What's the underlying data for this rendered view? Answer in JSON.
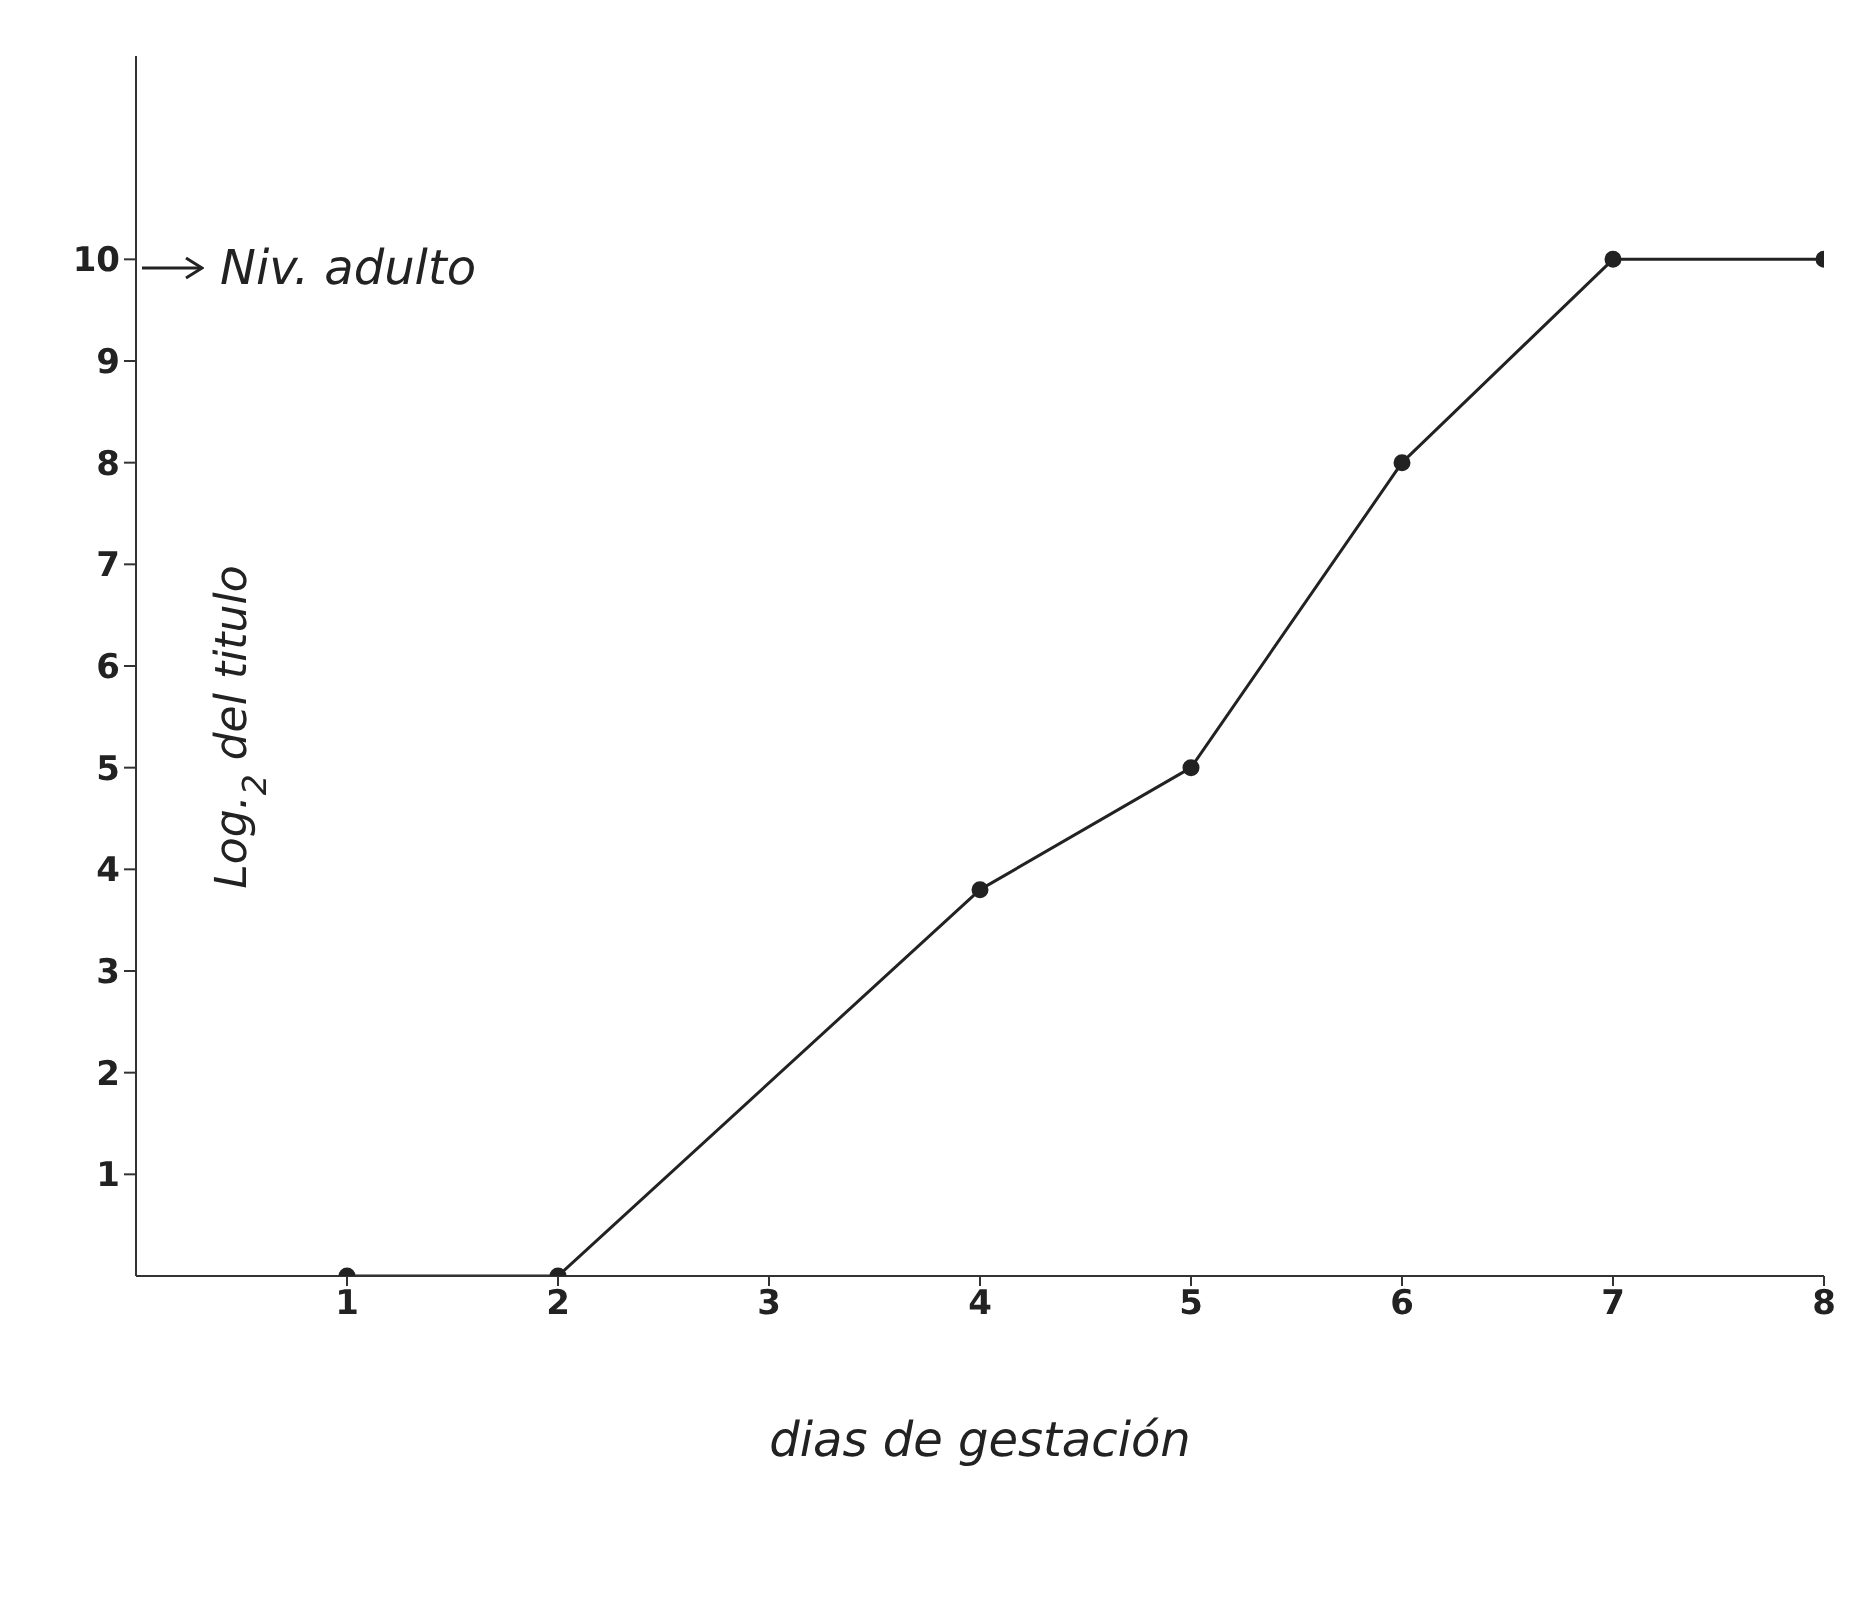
{
  "chart_data": {
    "type": "line",
    "xlabel": "dias de gestación",
    "ylabel": "Log.$_{2}$ del titulo",
    "x": [
      1,
      2,
      4,
      5,
      6,
      7,
      8
    ],
    "series": [
      {
        "color": "#222222",
        "values": [
          0,
          0,
          3.8,
          5,
          8,
          10,
          10
        ]
      }
    ],
    "xlim": [
      0,
      8
    ],
    "xticks": [
      1,
      2,
      3,
      4,
      5,
      6,
      7,
      8
    ],
    "ylim": [
      0,
      12
    ],
    "yticks": [
      1,
      2,
      3,
      4,
      5,
      6,
      7,
      8,
      9,
      10
    ],
    "annotations": [
      "Niv. adulto"
    ],
    "grid": false,
    "legend": false,
    "marker": "circle",
    "line_style": "solid"
  }
}
